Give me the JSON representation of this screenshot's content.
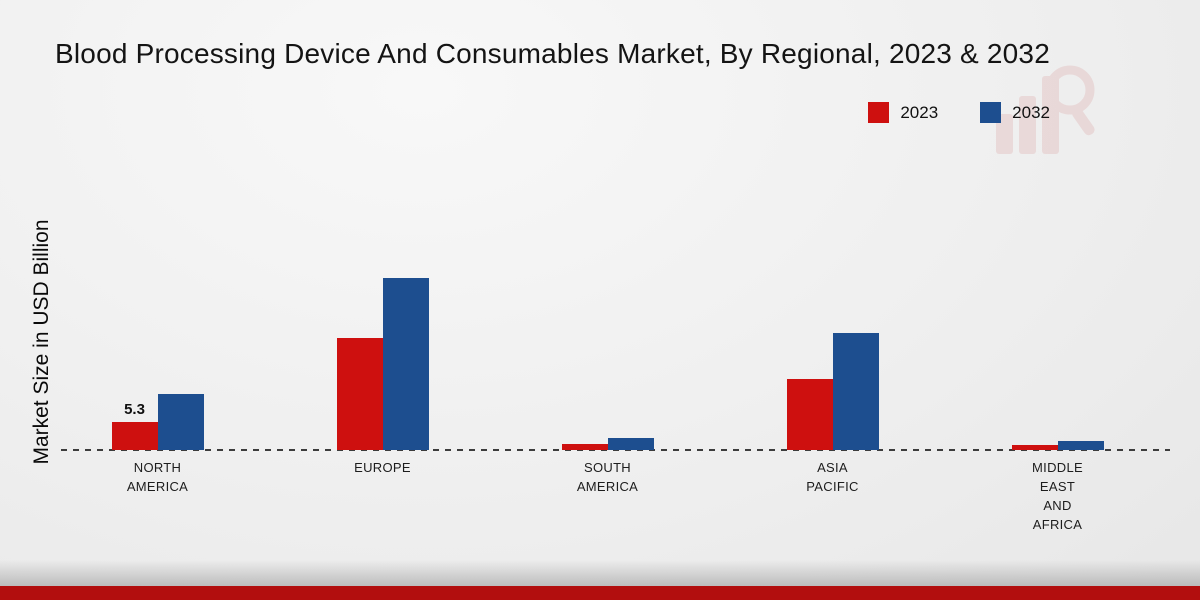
{
  "chart_data": {
    "type": "bar",
    "title": "Blood Processing Device And Consumables Market, By Regional, 2023 & 2032",
    "ylabel": "Market Size in USD Billion",
    "xlabel": "",
    "categories": [
      "NORTH AMERICA",
      "EUROPE",
      "SOUTH AMERICA",
      "ASIA PACIFIC",
      "MIDDLE EAST AND AFRICA"
    ],
    "category_display": [
      "NORTH\nAMERICA",
      "EUROPE",
      "SOUTH\nAMERICA",
      "ASIA\nPACIFIC",
      "MIDDLE\nEAST\nAND\nAFRICA"
    ],
    "series": [
      {
        "name": "2023",
        "color": "#ce100f",
        "values": [
          5.3,
          21.2,
          1.2,
          13.4,
          0.9
        ]
      },
      {
        "name": "2032",
        "color": "#1d4e8f",
        "values": [
          10.6,
          32.5,
          2.3,
          22.1,
          1.7
        ]
      }
    ],
    "annotations": [
      {
        "series": "2023",
        "category": "NORTH AMERICA",
        "text": "5.3"
      }
    ],
    "ylim": [
      0,
      35
    ],
    "grid": false,
    "legend_position": "top-right",
    "baseline_style": "dashed-zero-line"
  },
  "decor": {
    "footer_bar_color": "#b20e0e",
    "watermark_color": "#dfb9b9"
  }
}
